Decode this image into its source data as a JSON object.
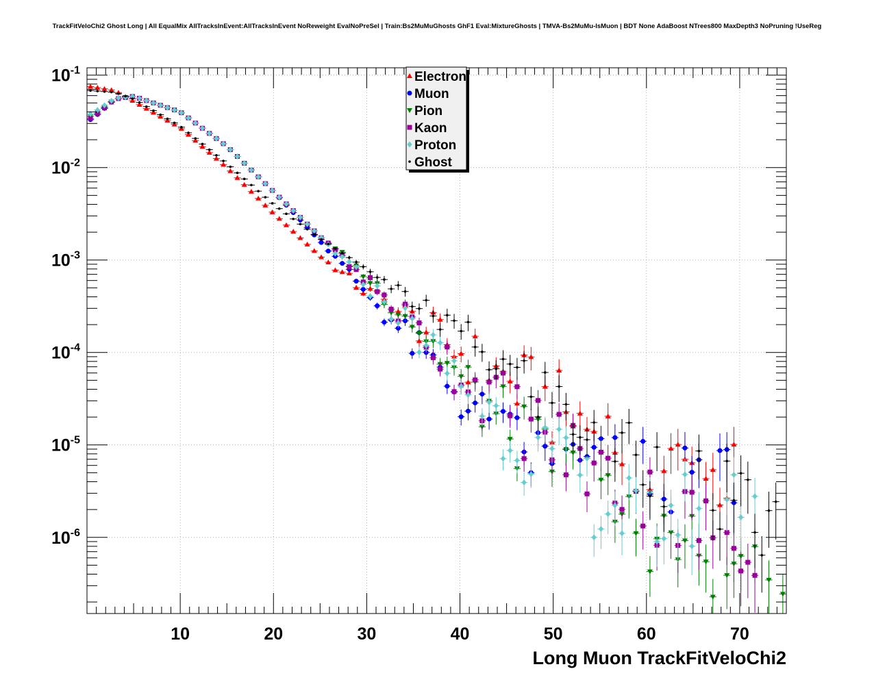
{
  "chart_data": {
    "type": "scatter",
    "title": "TrackFitVeloChi2 Ghost Long | All EqualMix AllTracksInEvent:AllTracksInEvent NoReweight EvalNoPreSel | Train:Bs2MuMuGhosts GhF1 Eval:MixtureGhosts | TMVA-Bs2MuMu-IsMuon | BDT None AdaBoost NTrees800 MaxDepth3 NoPruning !UseReg",
    "xlabel": "Long Muon TrackFitVeloChi2",
    "ylabel": "",
    "xlim": [
      0,
      75
    ],
    "ylim": [
      1.5e-07,
      0.12
    ],
    "ylog": true,
    "grid": true,
    "legend_position": "top-center",
    "x_ticks": [
      10,
      20,
      30,
      40,
      50,
      60,
      70
    ],
    "y_ticks": [
      {
        "value": 1e-06,
        "base": "10",
        "exp": "-6"
      },
      {
        "value": 1e-05,
        "base": "10",
        "exp": "-5"
      },
      {
        "value": 0.0001,
        "base": "10",
        "exp": "-4"
      },
      {
        "value": 0.001,
        "base": "10",
        "exp": "-3"
      },
      {
        "value": 0.01,
        "base": "10",
        "exp": "-2"
      },
      {
        "value": 0.1,
        "base": "10",
        "exp": "-1"
      }
    ],
    "bin_width": 0.75,
    "series": [
      {
        "name": "Electron",
        "color": "#ff0000",
        "marker": "triangle-up",
        "anchors": [
          [
            0.5,
            0.075
          ],
          [
            3,
            0.068
          ],
          [
            5,
            0.052
          ],
          [
            10,
            0.027
          ],
          [
            15,
            0.01
          ],
          [
            20,
            0.0032
          ],
          [
            25,
            0.0011
          ],
          [
            30,
            0.00045
          ],
          [
            35,
            0.00022
          ],
          [
            40,
            0.0001
          ],
          [
            45,
            5e-05
          ],
          [
            50,
            2.5e-05
          ],
          [
            55,
            1.4e-05
          ],
          [
            60,
            8e-06
          ],
          [
            65,
            5e-06
          ],
          [
            70,
            4e-06
          ]
        ],
        "start_sat": 25,
        "end": 70
      },
      {
        "name": "Muon",
        "color": "#0000ff",
        "marker": "circle",
        "anchors": [
          [
            0.5,
            0.033
          ],
          [
            3,
            0.055
          ],
          [
            5,
            0.059
          ],
          [
            10,
            0.04
          ],
          [
            15,
            0.017
          ],
          [
            20,
            0.0055
          ],
          [
            25,
            0.0016
          ],
          [
            30,
            0.00045
          ],
          [
            35,
            0.00012
          ],
          [
            40,
            3.5e-05
          ],
          [
            44,
            1.2e-05
          ],
          [
            50,
            6e-06
          ],
          [
            55,
            5e-06
          ],
          [
            70,
            5e-06
          ]
        ],
        "start_sat": 25,
        "end": 70
      },
      {
        "name": "Pion",
        "color": "#008000",
        "marker": "triangle-down",
        "anchors": [
          [
            0.5,
            0.036
          ],
          [
            3,
            0.055
          ],
          [
            5,
            0.059
          ],
          [
            10,
            0.04
          ],
          [
            15,
            0.017
          ],
          [
            20,
            0.0055
          ],
          [
            25,
            0.0018
          ],
          [
            30,
            0.00065
          ],
          [
            35,
            0.00022
          ],
          [
            40,
            5e-05
          ],
          [
            45,
            1.6e-05
          ],
          [
            50,
            7e-06
          ],
          [
            55,
            2.2e-06
          ],
          [
            60,
            1.2e-06
          ],
          [
            65,
            7e-07
          ],
          [
            70,
            4e-07
          ],
          [
            74,
            2.5e-07
          ]
        ],
        "start_sat": 25,
        "end": 75
      },
      {
        "name": "Kaon",
        "color": "#990099",
        "marker": "square",
        "anchors": [
          [
            0.5,
            0.034
          ],
          [
            3,
            0.055
          ],
          [
            5,
            0.059
          ],
          [
            10,
            0.04
          ],
          [
            15,
            0.017
          ],
          [
            20,
            0.0055
          ],
          [
            25,
            0.0018
          ],
          [
            30,
            0.0006
          ],
          [
            35,
            0.0002
          ],
          [
            40,
            6e-05
          ],
          [
            45,
            2.5e-05
          ],
          [
            50,
            1.1e-05
          ],
          [
            55,
            5e-06
          ],
          [
            60,
            2.5e-06
          ],
          [
            65,
            1.5e-06
          ],
          [
            70,
            1e-06
          ]
        ],
        "start_sat": 25,
        "end": 72
      },
      {
        "name": "Proton",
        "color": "#66cccc",
        "marker": "diamond",
        "anchors": [
          [
            0.5,
            0.038
          ],
          [
            3,
            0.056
          ],
          [
            5,
            0.059
          ],
          [
            10,
            0.04
          ],
          [
            15,
            0.017
          ],
          [
            20,
            0.0055
          ],
          [
            25,
            0.0018
          ],
          [
            30,
            0.00055
          ],
          [
            35,
            0.00018
          ],
          [
            40,
            5e-05
          ],
          [
            45,
            1.5e-05
          ],
          [
            50,
            6e-06
          ],
          [
            55,
            2.5e-06
          ],
          [
            60,
            1.5e-06
          ],
          [
            65,
            2e-06
          ],
          [
            70,
            3e-06
          ]
        ],
        "start_sat": 25,
        "end": 72
      },
      {
        "name": "Ghost",
        "color": "#000000",
        "marker": "dot",
        "anchors": [
          [
            0.5,
            0.068
          ],
          [
            3,
            0.065
          ],
          [
            5,
            0.055
          ],
          [
            10,
            0.028
          ],
          [
            15,
            0.011
          ],
          [
            20,
            0.004
          ],
          [
            25,
            0.0017
          ],
          [
            30,
            0.0008
          ],
          [
            35,
            0.00035
          ],
          [
            40,
            0.00016
          ],
          [
            45,
            6.5e-05
          ],
          [
            50,
            3e-05
          ],
          [
            55,
            1.4e-05
          ],
          [
            60,
            7e-06
          ],
          [
            65,
            4e-06
          ],
          [
            70,
            2e-06
          ],
          [
            75,
            1e-06
          ]
        ],
        "start_sat": 30,
        "end": 75
      }
    ]
  }
}
